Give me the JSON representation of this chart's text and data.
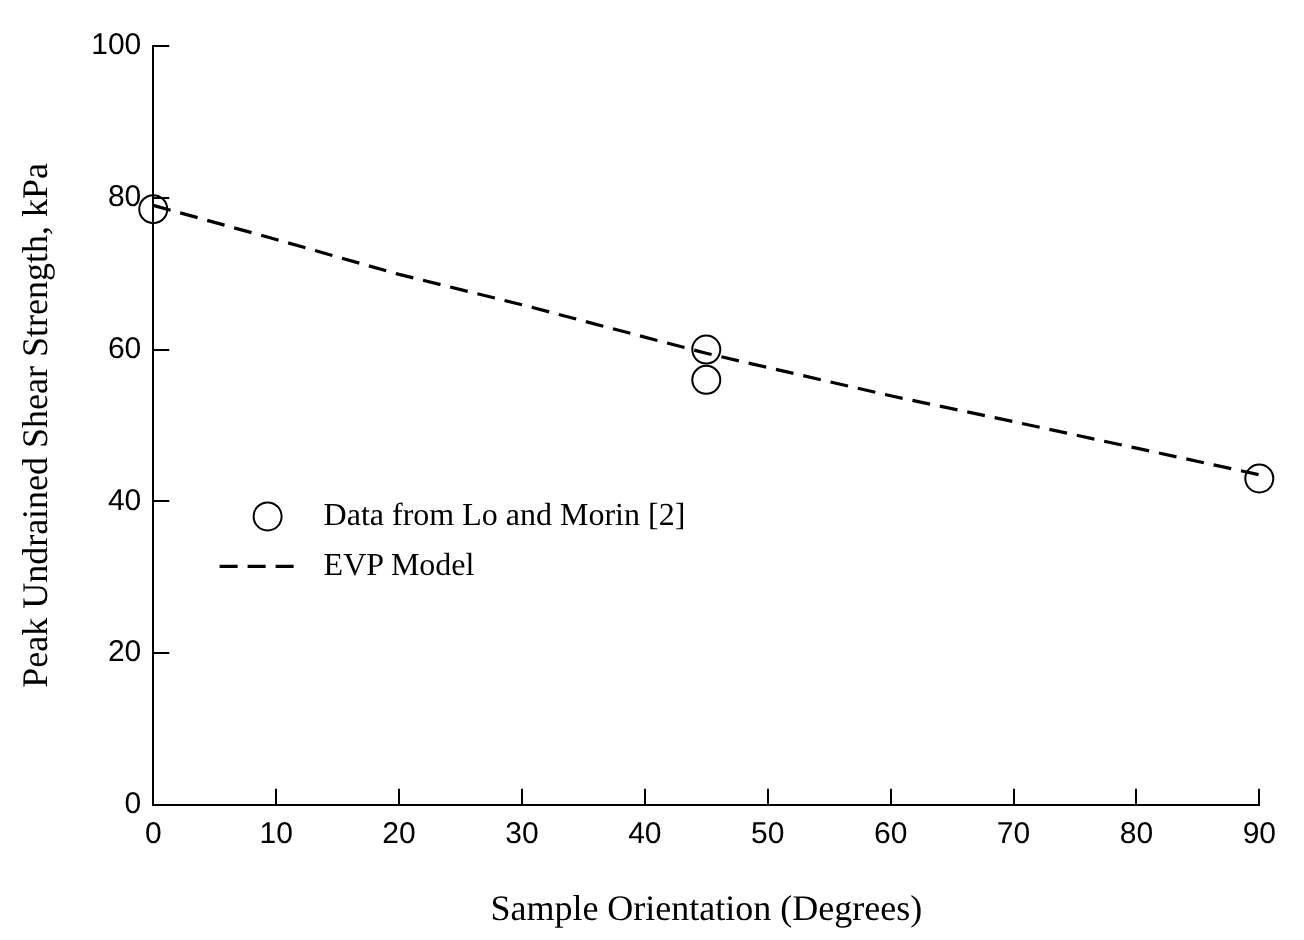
{
  "chart_data": {
    "type": "scatter",
    "xlabel": "Sample Orientation (Degrees)",
    "ylabel": "Peak Undrained Shear Strength, kPa",
    "xlim": [
      0,
      90
    ],
    "xticks": [
      0,
      10,
      20,
      30,
      40,
      50,
      60,
      70,
      80,
      90
    ],
    "ylim": [
      0,
      100
    ],
    "yticks": [
      0,
      20,
      40,
      60,
      80,
      100
    ],
    "grid": false,
    "legend": "left",
    "series": [
      {
        "name": "Data from Lo and Morin [2]",
        "type": "scatter",
        "marker": "circle",
        "color": "#000000",
        "x": [
          0,
          45,
          45,
          90
        ],
        "values": [
          78.5,
          60,
          56,
          43
        ]
      },
      {
        "name": "EVP Model",
        "type": "line",
        "marker": "none",
        "line_style": "dashed",
        "color": "#000000",
        "x": [
          0,
          10,
          20,
          30,
          45,
          60,
          70,
          80,
          90
        ],
        "values": [
          79,
          74.5,
          69.9,
          65.9,
          59.5,
          53.9,
          50.5,
          47,
          43.5
        ]
      }
    ]
  }
}
